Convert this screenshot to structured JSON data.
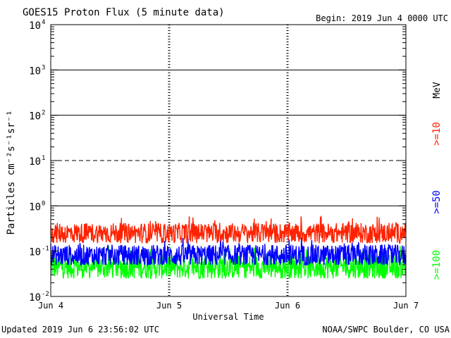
{
  "header": {
    "title": "GOES15 Proton Flux (5 minute data)",
    "begin": "Begin: 2019 Jun 4 0000 UTC"
  },
  "footer": {
    "updated": "Updated 2019 Jun  6 23:56:02 UTC",
    "source": "NOAA/SWPC Boulder, CO USA"
  },
  "chart_data": {
    "type": "line",
    "title": "GOES15 Proton Flux (5 minute data)",
    "xlabel": "Universal Time",
    "ylabel": "Particles cm⁻²s⁻¹sr⁻¹",
    "yscale": "log",
    "ylim": [
      0.01,
      10000
    ],
    "xlim": [
      "2019-06-04T00:00Z",
      "2019-06-07T00:00Z"
    ],
    "x_ticks": [
      "Jun 4",
      "Jun 5",
      "Jun 6",
      "Jun 7"
    ],
    "y_ticks": [
      {
        "base": "10",
        "exp": "-2"
      },
      {
        "base": "10",
        "exp": "-1"
      },
      {
        "base": "10",
        "exp": "0"
      },
      {
        "base": "10",
        "exp": "1"
      },
      {
        "base": "10",
        "exp": "2"
      },
      {
        "base": "10",
        "exp": "3"
      },
      {
        "base": "10",
        "exp": "4"
      }
    ],
    "legend_unit": "MeV",
    "legend_position": "right",
    "threshold_lines": [
      1,
      10,
      100,
      1000
    ],
    "series": [
      {
        "name": ">=10",
        "color": "#ff2200",
        "approx_level": 0.25,
        "range": [
          0.15,
          0.6
        ]
      },
      {
        "name": ">=50",
        "color": "#0000ff",
        "approx_level": 0.08,
        "range": [
          0.05,
          0.22
        ]
      },
      {
        "name": ">=100",
        "color": "#00ff00",
        "approx_level": 0.045,
        "range": [
          0.025,
          0.13
        ]
      }
    ]
  }
}
